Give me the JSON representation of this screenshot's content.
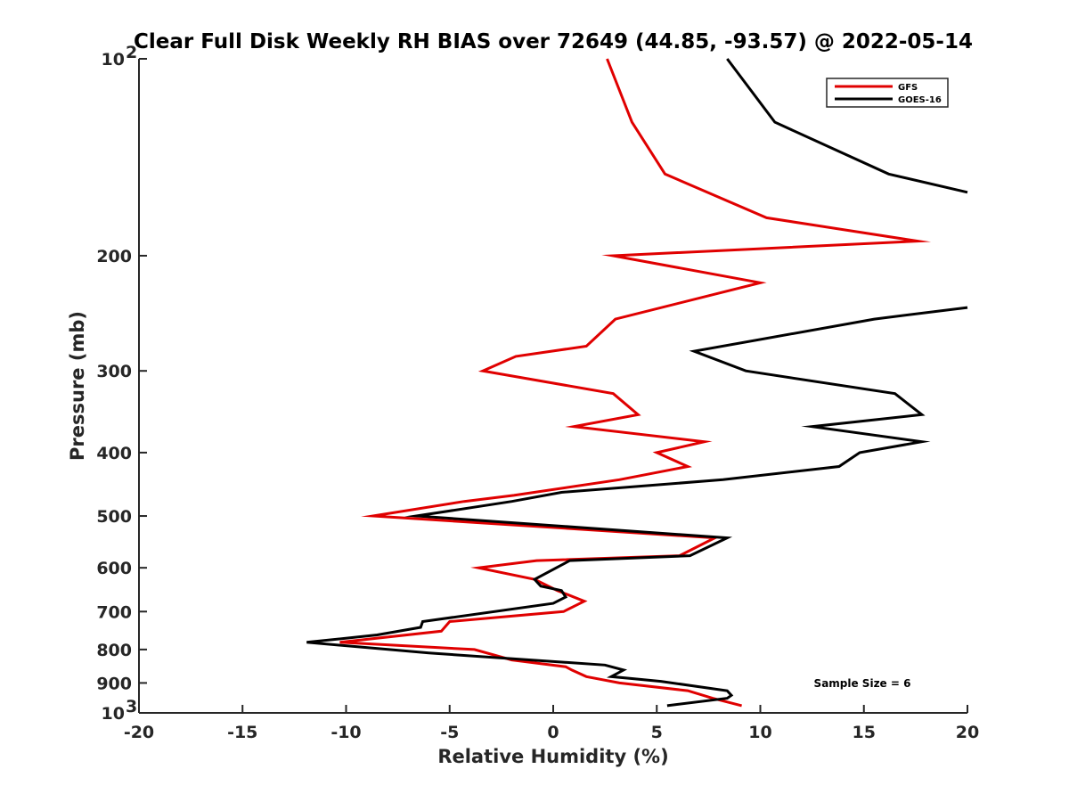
{
  "chart_data": {
    "type": "line",
    "title": "Clear Full Disk Weekly RH BIAS over 72649 (44.85, -93.57) @ 2022-05-14",
    "xlabel": "Relative Humidity (%)",
    "ylabel": "Pressure (mb)",
    "xlim": [
      -20,
      20
    ],
    "ylim": [
      100,
      1000
    ],
    "y_scale": "log",
    "y_reversed": true,
    "xticks": [
      "-20",
      "-15",
      "-10",
      "-5",
      "0",
      "5",
      "10",
      "15",
      "20"
    ],
    "yticks": [
      {
        "value": 100,
        "base": "10",
        "exp": "2"
      },
      {
        "value": 200,
        "label": "200"
      },
      {
        "value": 300,
        "label": "300"
      },
      {
        "value": 400,
        "label": "400"
      },
      {
        "value": 500,
        "label": "500"
      },
      {
        "value": 600,
        "label": "600"
      },
      {
        "value": 700,
        "label": "700"
      },
      {
        "value": 800,
        "label": "800"
      },
      {
        "value": 900,
        "label": "900"
      },
      {
        "value": 1000,
        "base": "10",
        "exp": "3"
      }
    ],
    "grid": false,
    "legend_position": "top-right",
    "series": [
      {
        "name": "GFS",
        "color": "#e00000",
        "points": [
          [
            2.6,
            100
          ],
          [
            3.8,
            125
          ],
          [
            5.4,
            150
          ],
          [
            10.3,
            175
          ],
          [
            17.6,
            190
          ],
          [
            2.9,
            200
          ],
          [
            10.0,
            220
          ],
          [
            3.0,
            250
          ],
          [
            1.6,
            275
          ],
          [
            -1.8,
            285
          ],
          [
            -3.4,
            300
          ],
          [
            2.9,
            325
          ],
          [
            4.1,
            350
          ],
          [
            1.0,
            365
          ],
          [
            7.3,
            385
          ],
          [
            5.0,
            400
          ],
          [
            6.5,
            420
          ],
          [
            3.2,
            440
          ],
          [
            -1.9,
            465
          ],
          [
            -4.3,
            475
          ],
          [
            -8.7,
            500
          ],
          [
            7.8,
            540
          ],
          [
            6.1,
            575
          ],
          [
            -0.8,
            585
          ],
          [
            -3.6,
            600
          ],
          [
            -0.9,
            625
          ],
          [
            0.2,
            650
          ],
          [
            1.5,
            675
          ],
          [
            0.5,
            700
          ],
          [
            -5.0,
            725
          ],
          [
            -5.4,
            750
          ],
          [
            -10.3,
            780
          ],
          [
            -3.8,
            800
          ],
          [
            -2.0,
            830
          ],
          [
            0.6,
            850
          ],
          [
            0.9,
            860
          ],
          [
            1.6,
            880
          ],
          [
            3.2,
            900
          ],
          [
            6.5,
            925
          ],
          [
            7.7,
            950
          ],
          [
            9.1,
            975
          ]
        ]
      },
      {
        "name": "GOES-16",
        "color": "#000000",
        "points": [
          [
            8.4,
            100
          ],
          [
            10.7,
            125
          ],
          [
            16.2,
            150
          ],
          [
            20.0,
            160
          ],
          [
            null,
            200
          ],
          [
            20.0,
            240
          ],
          [
            15.5,
            250
          ],
          [
            6.8,
            280
          ],
          [
            9.3,
            300
          ],
          [
            16.5,
            325
          ],
          [
            17.8,
            350
          ],
          [
            12.5,
            365
          ],
          [
            17.8,
            385
          ],
          [
            14.8,
            400
          ],
          [
            13.8,
            420
          ],
          [
            8.2,
            440
          ],
          [
            0.4,
            460
          ],
          [
            -2.0,
            475
          ],
          [
            -6.6,
            500
          ],
          [
            8.4,
            540
          ],
          [
            6.6,
            575
          ],
          [
            0.8,
            585
          ],
          [
            -0.9,
            625
          ],
          [
            -0.6,
            640
          ],
          [
            0.4,
            650
          ],
          [
            0.6,
            665
          ],
          [
            0.0,
            680
          ],
          [
            -6.3,
            725
          ],
          [
            -6.4,
            740
          ],
          [
            -8.5,
            760
          ],
          [
            -11.9,
            780
          ],
          [
            -6.0,
            810
          ],
          [
            2.5,
            845
          ],
          [
            3.4,
            860
          ],
          [
            2.8,
            880
          ],
          [
            5.2,
            895
          ],
          [
            8.4,
            925
          ],
          [
            8.6,
            940
          ],
          [
            8.4,
            950
          ],
          [
            5.5,
            975
          ]
        ]
      }
    ],
    "annotation": "Sample Size = 6"
  }
}
